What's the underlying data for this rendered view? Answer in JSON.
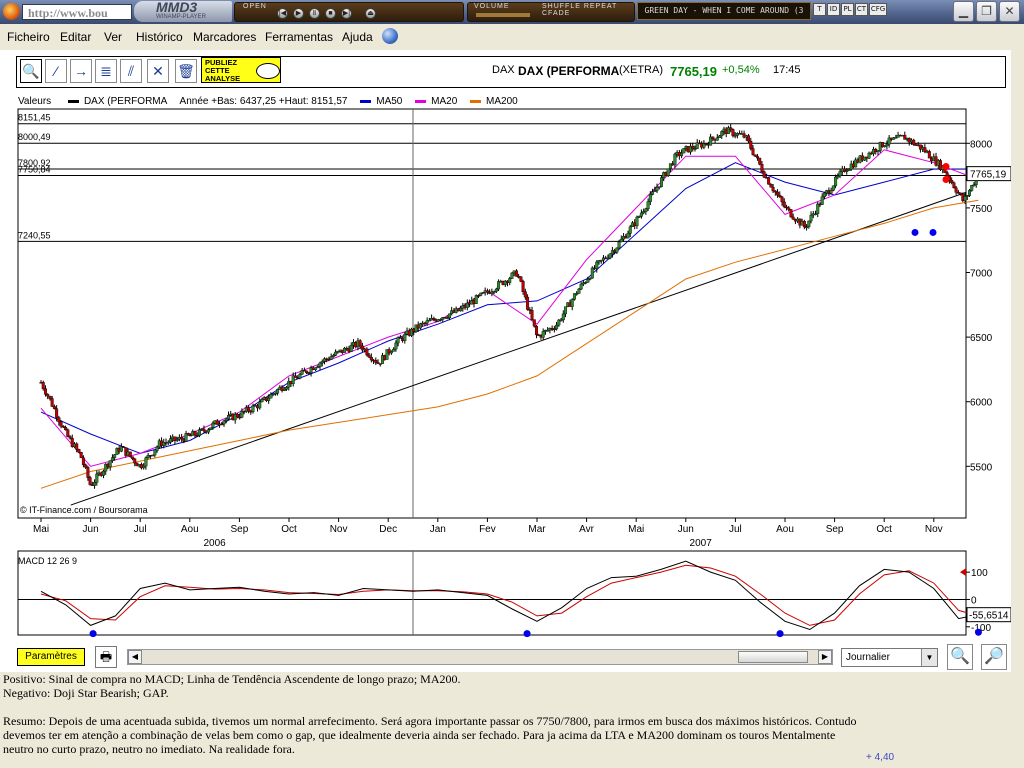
{
  "browser": {
    "url_text": "http://www.bou",
    "player_logo": "MMD3",
    "player_sub": "WINAMP-PLAYER",
    "open_label": "OPEN",
    "volume_label": "VOLUME",
    "shuffle_label": "SHUFFLE REPEAT CFADE",
    "now_playing": "GREEN DAY - WHEN I COME AROUND (3",
    "mini_buttons": [
      "T",
      "ID",
      "PL",
      "CT",
      "CFG"
    ]
  },
  "menu": {
    "items": [
      "Ficheiro",
      "Editar",
      "Ver",
      "Histórico",
      "Marcadores",
      "Ferramentas",
      "Ajuda"
    ]
  },
  "toolbar": {
    "tools": [
      "zoom-tool",
      "line-tool",
      "horizontal-line-tool",
      "fibonacci-tool",
      "trend-channel-tool",
      "cross-tool",
      "trash-tool"
    ],
    "ad_line1": "PUBLIEZ",
    "ad_line2": "CETTE",
    "ad_line3": "ANALYSE"
  },
  "quote": {
    "ticker": "DAX",
    "name": "DAX (PERFORMA",
    "market": "(XETRA)",
    "price": "7765,19",
    "change": "+0,54%",
    "time": "17:45",
    "price_color": "#008000"
  },
  "legend": {
    "valeurs": "Valeurs",
    "series_name": "DAX (PERFORMA",
    "stats": "Année +Bas: 6437,25 +Haut: 8151,57",
    "ma50": "MA50",
    "ma20": "MA20",
    "ma200": "MA200",
    "colors": {
      "dax": "#000000",
      "ma50": "#0000cc",
      "ma20": "#e000e0",
      "ma200": "#e07000"
    }
  },
  "chart_data": [
    {
      "type": "line",
      "title": "DAX (PERFORMA",
      "ylim": [
        5100,
        8250
      ],
      "y_ticks": [
        5500,
        6000,
        6500,
        7000,
        7500,
        8000
      ],
      "y_tick_labels": [
        "5500",
        "6000",
        "6500",
        "7000",
        "7500",
        "8000"
      ],
      "x_month_labels": [
        "Mai",
        "Jun",
        "Jul",
        "Aou",
        "Sep",
        "Oct",
        "Nov",
        "Dec",
        "Jan",
        "Fev",
        "Mar",
        "Avr",
        "Mai",
        "Jun",
        "Jul",
        "Aou",
        "Sep",
        "Oct",
        "Nov"
      ],
      "x_year_labels": [
        "2006",
        "2007"
      ],
      "hlines": [
        {
          "value": 8151.45,
          "label": "8151,45"
        },
        {
          "value": 8000.49,
          "label": "8000,49"
        },
        {
          "value": 7800.92,
          "label": "7800,92"
        },
        {
          "value": 7750.84,
          "label": "7750,84"
        },
        {
          "value": 7240.55,
          "label": "7240,55"
        }
      ],
      "last_price_tag": "7765,19",
      "source_text": "© IT-Finance.com / Boursorama",
      "series": [
        {
          "name": "DAX (PERFORMA",
          "month_index": [
            0,
            0.2,
            0.5,
            0.8,
            1.0,
            1.3,
            1.6,
            2.0,
            2.4,
            2.8,
            3.2,
            3.6,
            4.0,
            4.4,
            4.8,
            5.2,
            5.6,
            6.0,
            6.4,
            6.8,
            7.2,
            7.6,
            8.0,
            8.4,
            8.8,
            9.2,
            9.6,
            10.0,
            10.4,
            10.8,
            11.2,
            11.6,
            12.0,
            12.4,
            12.8,
            13.0,
            13.4,
            13.8,
            14.2,
            14.6,
            15.0,
            15.4,
            15.8,
            16.2,
            16.6,
            17.0,
            17.4,
            17.8,
            18.2,
            18.6,
            18.9
          ],
          "values": [
            6150,
            6000,
            5750,
            5580,
            5350,
            5500,
            5650,
            5500,
            5680,
            5710,
            5760,
            5850,
            5900,
            5980,
            6100,
            6200,
            6300,
            6380,
            6450,
            6300,
            6470,
            6580,
            6650,
            6700,
            6800,
            6900,
            7000,
            6500,
            6600,
            6850,
            7050,
            7200,
            7400,
            7650,
            7900,
            7950,
            8000,
            8100,
            8050,
            7750,
            7500,
            7350,
            7600,
            7800,
            7900,
            8000,
            8050,
            7950,
            7800,
            7550,
            7765
          ]
        },
        {
          "name": "MA20",
          "month_index": [
            0,
            1,
            2,
            3,
            4,
            5,
            6,
            7,
            8,
            9,
            10,
            11,
            12,
            13,
            14,
            15,
            16,
            17,
            18,
            18.9
          ],
          "values": [
            5950,
            5500,
            5600,
            5750,
            5920,
            6200,
            6350,
            6500,
            6620,
            6860,
            6600,
            7100,
            7500,
            7900,
            7900,
            7450,
            7600,
            7950,
            7850,
            7720
          ]
        },
        {
          "name": "MA50",
          "month_index": [
            0,
            1,
            2,
            3,
            4,
            5,
            6,
            7,
            8,
            9,
            10,
            11,
            12,
            13,
            14,
            15,
            16,
            17,
            18,
            18.9
          ],
          "values": [
            5920,
            5750,
            5600,
            5700,
            5900,
            6150,
            6300,
            6470,
            6600,
            6750,
            6780,
            6950,
            7300,
            7650,
            7850,
            7700,
            7600,
            7700,
            7800,
            7800
          ]
        },
        {
          "name": "MA200",
          "month_index": [
            0,
            1,
            2,
            3,
            4,
            5,
            6,
            7,
            8,
            9,
            10,
            11,
            12,
            13,
            14,
            15,
            16,
            17,
            18,
            18.9
          ],
          "values": [
            5330,
            5460,
            5540,
            5620,
            5700,
            5780,
            5840,
            5900,
            5960,
            6060,
            6200,
            6450,
            6700,
            6950,
            7080,
            7180,
            7280,
            7380,
            7500,
            7560
          ]
        }
      ]
    },
    {
      "type": "line",
      "title": "MACD 12 26 9",
      "ylim": [
        -130,
        170
      ],
      "y_tick_labels": [
        "100",
        "0",
        "-100"
      ],
      "last_value_tag": "-55,6514",
      "series": [
        {
          "name": "MACD",
          "month_index": [
            0,
            0.5,
            1.0,
            1.5,
            2.0,
            2.5,
            3.0,
            3.5,
            4.0,
            4.5,
            5.0,
            5.5,
            6.0,
            6.5,
            7.0,
            7.5,
            8.0,
            8.5,
            9.0,
            9.5,
            10.0,
            10.5,
            11.0,
            11.5,
            12.0,
            12.5,
            13.0,
            13.5,
            14.0,
            14.5,
            15.0,
            15.5,
            16.0,
            16.5,
            17.0,
            17.5,
            18.0,
            18.5,
            18.9
          ],
          "values": [
            30,
            -20,
            -95,
            -60,
            40,
            60,
            35,
            40,
            45,
            30,
            20,
            25,
            15,
            40,
            35,
            30,
            35,
            25,
            15,
            -35,
            -80,
            -30,
            40,
            80,
            85,
            110,
            140,
            100,
            70,
            -10,
            -80,
            -110,
            -50,
            50,
            110,
            100,
            40,
            -70,
            -55
          ]
        },
        {
          "name": "Signal",
          "month_index": [
            0,
            0.5,
            1.0,
            1.5,
            2.0,
            2.5,
            3.0,
            3.5,
            4.0,
            4.5,
            5.0,
            5.5,
            6.0,
            6.5,
            7.0,
            7.5,
            8.0,
            8.5,
            9.0,
            9.5,
            10.0,
            10.5,
            11.0,
            11.5,
            12.0,
            12.5,
            13.0,
            13.5,
            14.0,
            14.5,
            15.0,
            15.5,
            16.0,
            16.5,
            17.0,
            17.5,
            18.0,
            18.5,
            18.9
          ],
          "values": [
            20,
            -5,
            -70,
            -75,
            10,
            50,
            45,
            38,
            40,
            35,
            25,
            22,
            18,
            30,
            35,
            32,
            32,
            28,
            20,
            -10,
            -60,
            -50,
            10,
            60,
            80,
            100,
            125,
            115,
            85,
            20,
            -50,
            -95,
            -75,
            20,
            90,
            105,
            60,
            -40,
            -60
          ]
        }
      ]
    }
  ],
  "bottom_bar": {
    "params_label": "Paramètres",
    "period_value": "Journalier"
  },
  "analysis": {
    "positive": "Positivo: Sinal de compra no MACD; Linha de Tendência Ascendente de longo prazo; MA200.",
    "negative": "Negativo: Doji Star Bearish; GAP.",
    "summary_l1": "Resumo: Depois de uma acentuada subida, tivemos um normal arrefecimento. Será agora importante passar os 7750/7800, para irmos em busca dos máximos históricos. Contudo",
    "summary_l2": "devemos ter em atenção a combinação de velas bem como o gap, que idealmente deveria ainda ser fechado. Para ja acima da LTA e MA200 dominam os touros Mentalmente",
    "summary_l3": "neutro no curto prazo, neutro no imediato. Na realidade fora.",
    "footer_num": "+ 4,40"
  }
}
